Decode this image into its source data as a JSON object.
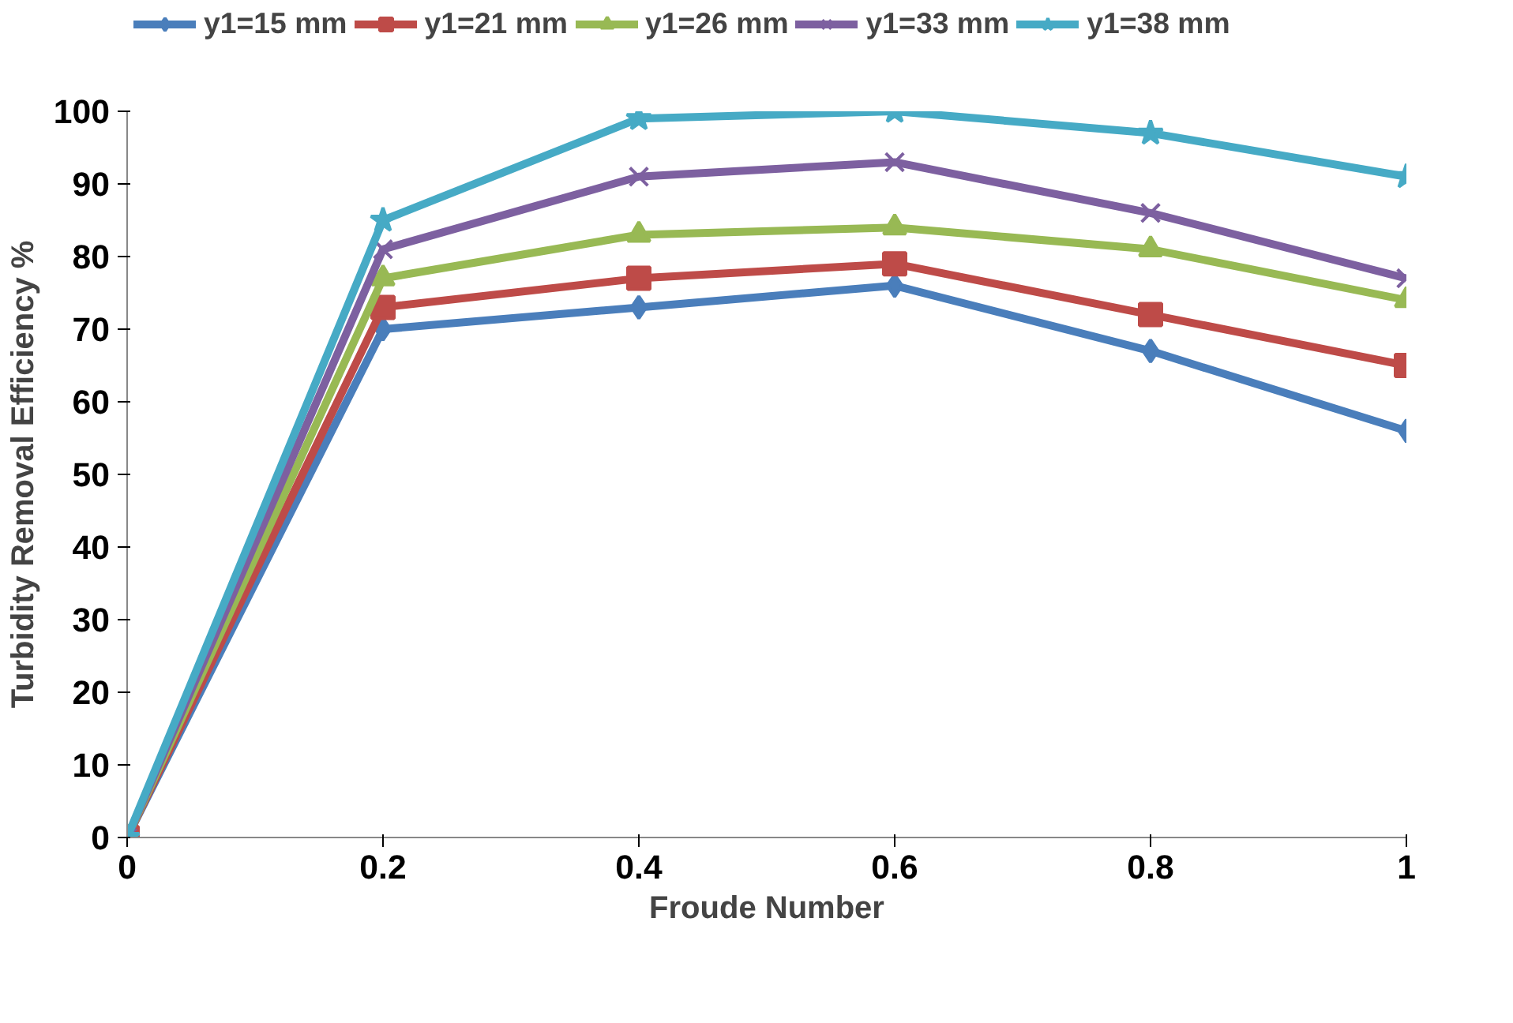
{
  "chart_data": {
    "type": "line",
    "xlabel": "Froude Number",
    "ylabel": "Turbidity Removal Efficiency %",
    "x": [
      0,
      0.2,
      0.4,
      0.6,
      0.8,
      1
    ],
    "xlim": [
      0,
      1
    ],
    "xticks": [
      0,
      0.2,
      0.4,
      0.6,
      0.8,
      1
    ],
    "ylim": [
      0,
      100
    ],
    "yticks": [
      0,
      10,
      20,
      30,
      40,
      50,
      60,
      70,
      80,
      90,
      100
    ],
    "grid": false,
    "legend": "top",
    "series": [
      {
        "name": "y1=15 mm",
        "color": "#4a7ebb",
        "marker": "diamond",
        "values": [
          0,
          70,
          73,
          76,
          67,
          56
        ]
      },
      {
        "name": "y1=21 mm",
        "color": "#be4b48",
        "marker": "square",
        "values": [
          0,
          73,
          77,
          79,
          72,
          65
        ]
      },
      {
        "name": "y1=26 mm",
        "color": "#98b954",
        "marker": "triangle",
        "values": [
          0,
          77,
          83,
          84,
          81,
          74
        ]
      },
      {
        "name": "y1=33 mm",
        "color": "#7d60a0",
        "marker": "cross",
        "values": [
          0,
          81,
          91,
          93,
          86,
          77
        ]
      },
      {
        "name": "y1=38 mm",
        "color": "#46aac5",
        "marker": "star",
        "values": [
          0,
          85,
          99,
          100,
          97,
          91
        ]
      }
    ]
  }
}
